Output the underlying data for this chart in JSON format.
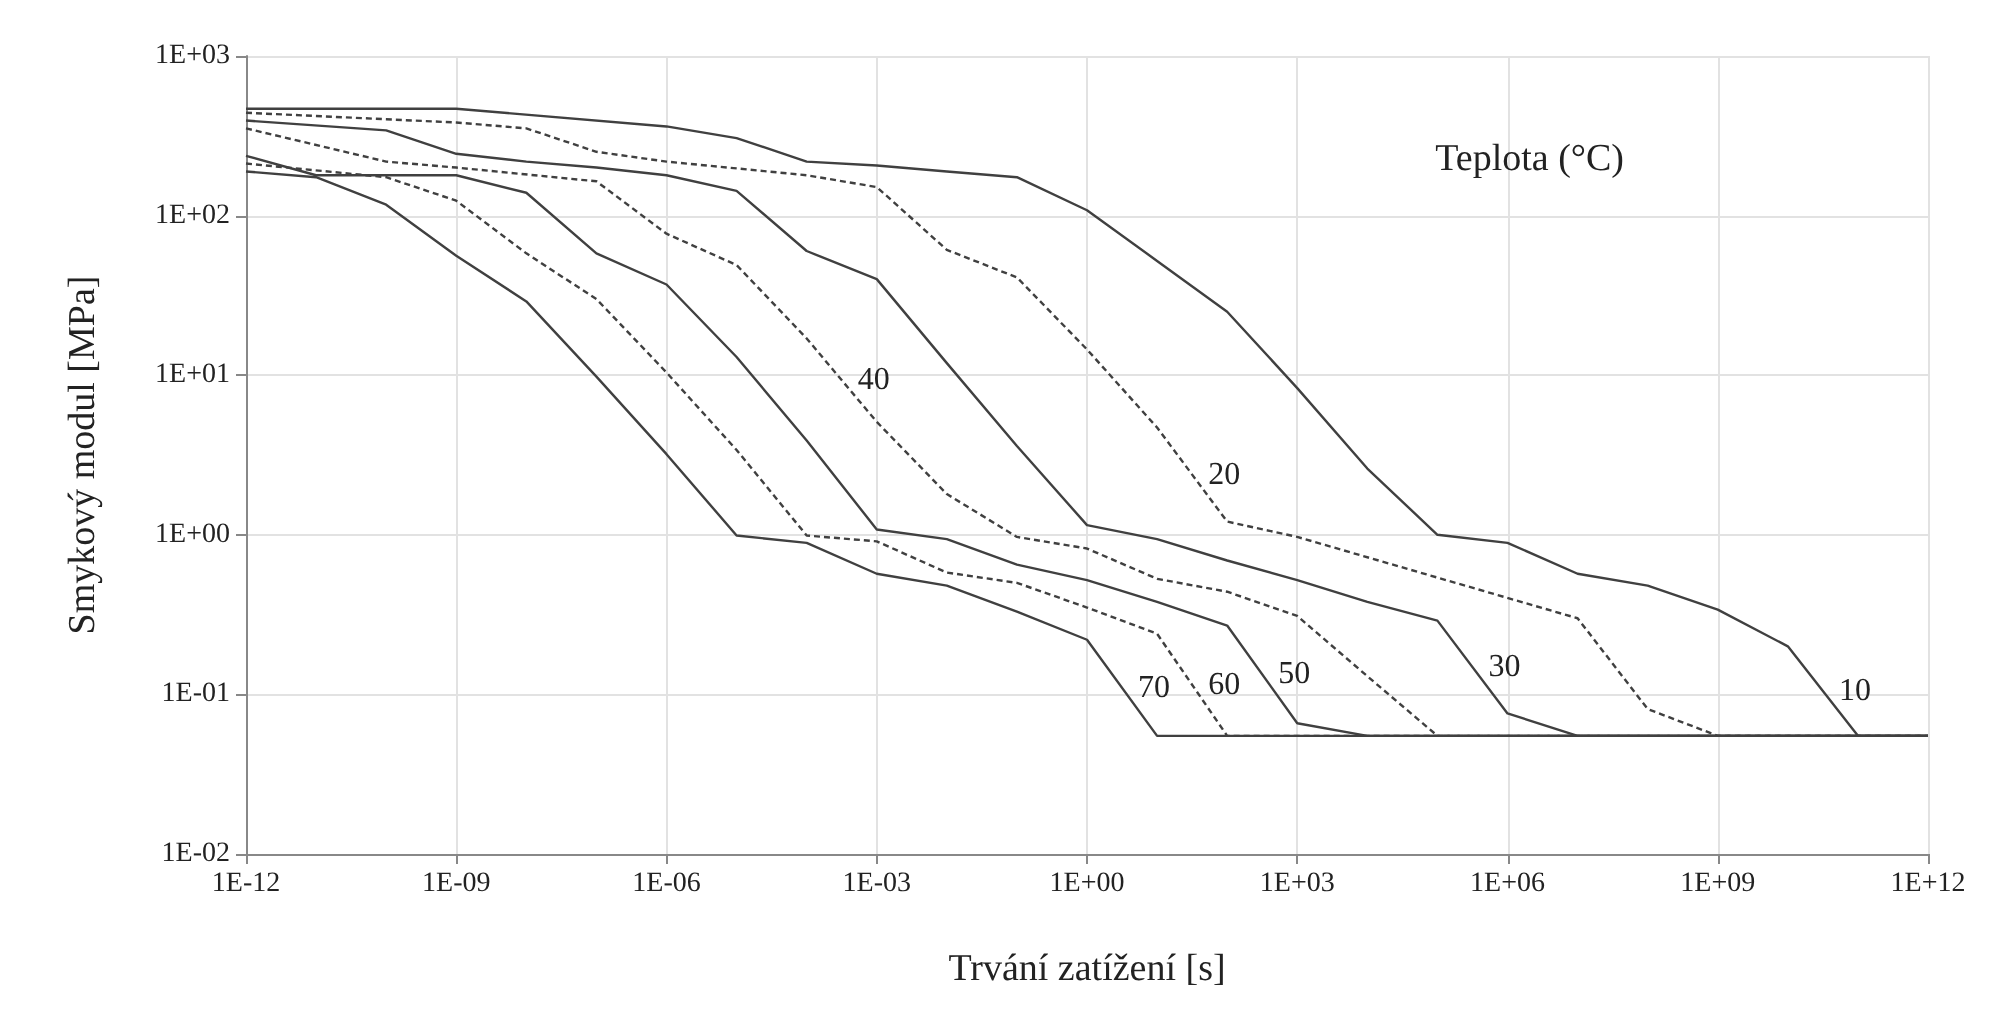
{
  "chart_data": {
    "type": "line",
    "xlabel": "Trvání zatížení [s]",
    "ylabel": "Smykový modul [MPa]",
    "log": "xy",
    "grid": true,
    "legend": false,
    "marker": "none",
    "xlim": [
      1e-12,
      1000000000000.0
    ],
    "xticks": [
      {
        "value": 1e-12,
        "label": "1E-12"
      },
      {
        "value": 1e-09,
        "label": "1E-09"
      },
      {
        "value": 1e-06,
        "label": "1E-06"
      },
      {
        "value": 0.001,
        "label": "1E-03"
      },
      {
        "value": 1,
        "label": "1E+00"
      },
      {
        "value": 1000.0,
        "label": "1E+03"
      },
      {
        "value": 1000000.0,
        "label": "1E+06"
      },
      {
        "value": 1000000000.0,
        "label": "1E+09"
      },
      {
        "value": 1000000000000.0,
        "label": "1E+12"
      }
    ],
    "ylim": [
      0.01,
      1000
    ],
    "yticks": [
      {
        "value": 0.01,
        "label": "1E-02"
      },
      {
        "value": 0.1,
        "label": "1E-01"
      },
      {
        "value": 1,
        "label": "1E+00"
      },
      {
        "value": 10,
        "label": "1E+01"
      },
      {
        "value": 100,
        "label": "1E+02"
      },
      {
        "value": 1000,
        "label": "1E+03"
      }
    ],
    "series": [
      {
        "name": "10",
        "color": "#404040",
        "line_style": "solid",
        "x": [
          1e-12,
          1e-09,
          1e-06,
          1e-05,
          0.0001,
          0.001,
          0.01,
          0.1,
          1,
          10,
          100,
          1000.0,
          10000.0,
          100000.0,
          1000000.0,
          10000000.0,
          100000000.0,
          1000000000.0,
          10000000000.0,
          100000000000.0,
          1000000000000.0
        ],
        "values": [
          467,
          467,
          362,
          306,
          218,
          206,
          189,
          174,
          108,
          52,
          25,
          8.3,
          2.6,
          1.0,
          0.89,
          0.57,
          0.48,
          0.34,
          0.2,
          0.055,
          0.055
        ]
      },
      {
        "name": "20",
        "color": "#404040",
        "line_style": "dashed",
        "x": [
          1e-12,
          1e-09,
          1e-08,
          1e-07,
          1e-06,
          0.0001,
          0.001,
          0.01,
          0.1,
          1,
          10,
          100,
          1000.0,
          10000000.0,
          100000000.0,
          1000000000.0,
          1000000000000.0
        ],
        "values": [
          441,
          383,
          352,
          251,
          218,
          179,
          151,
          61,
          41,
          14.5,
          4.7,
          1.21,
          0.97,
          0.3,
          0.081,
          0.055,
          0.055
        ]
      },
      {
        "name": "30",
        "color": "#404040",
        "line_style": "solid",
        "x": [
          1e-12,
          1e-10,
          1e-09,
          1e-08,
          1e-07,
          1e-06,
          1e-05,
          0.0001,
          0.001,
          0.01,
          0.1,
          1,
          10,
          100,
          1000.0,
          10000.0,
          100000.0,
          1000000.0,
          10000000.0,
          1000000000000.0
        ],
        "values": [
          394,
          342,
          244,
          218,
          200,
          179,
          143,
          60,
          40,
          11.9,
          3.6,
          1.15,
          0.94,
          0.69,
          0.52,
          0.38,
          0.29,
          0.076,
          0.055,
          0.055
        ]
      },
      {
        "name": "40",
        "color": "#404040",
        "line_style": "dashed",
        "x": [
          1e-12,
          1e-10,
          1e-09,
          1e-07,
          1e-06,
          1e-05,
          0.0001,
          0.001,
          0.01,
          0.1,
          1,
          10,
          100,
          1000.0,
          10000.0,
          100000.0,
          1000000000000.0
        ],
        "values": [
          352,
          218,
          200,
          164,
          77,
          49,
          17,
          5.1,
          1.8,
          0.97,
          0.82,
          0.53,
          0.44,
          0.31,
          0.13,
          0.055,
          0.055
        ]
      },
      {
        "name": "50",
        "color": "#404040",
        "line_style": "solid",
        "x": [
          1e-12,
          1e-11,
          1e-09,
          1e-08,
          1e-07,
          1e-06,
          1e-05,
          0.0001,
          0.001,
          0.01,
          0.1,
          1,
          10,
          100,
          1000.0,
          10000.0,
          1000000000000.0
        ],
        "values": [
          237,
          179,
          179,
          139,
          58,
          37,
          13,
          3.9,
          1.08,
          0.94,
          0.65,
          0.52,
          0.38,
          0.27,
          0.066,
          0.055,
          0.055
        ]
      },
      {
        "name": "60",
        "color": "#404040",
        "line_style": "dashed",
        "x": [
          1e-12,
          1e-10,
          1e-09,
          1e-08,
          1e-07,
          1e-06,
          1e-05,
          0.0001,
          0.001,
          0.01,
          0.1,
          1,
          10,
          100,
          1000000000000.0
        ],
        "values": [
          212,
          174,
          124,
          58,
          30,
          10.4,
          3.4,
          0.99,
          0.91,
          0.58,
          0.5,
          0.35,
          0.24,
          0.055,
          0.055
        ]
      },
      {
        "name": "70",
        "color": "#404040",
        "line_style": "solid",
        "x": [
          1e-12,
          1e-11,
          1e-10,
          1e-09,
          1e-08,
          1e-07,
          1e-06,
          1e-05,
          0.0001,
          0.001,
          0.01,
          0.1,
          1,
          10,
          1000000000000.0
        ],
        "values": [
          189,
          174,
          117,
          56,
          29,
          9.8,
          3.2,
          0.99,
          0.89,
          0.57,
          0.48,
          0.33,
          0.22,
          0.055,
          0.055
        ]
      }
    ],
    "annotations": [
      "Teplota (°C)"
    ]
  }
}
